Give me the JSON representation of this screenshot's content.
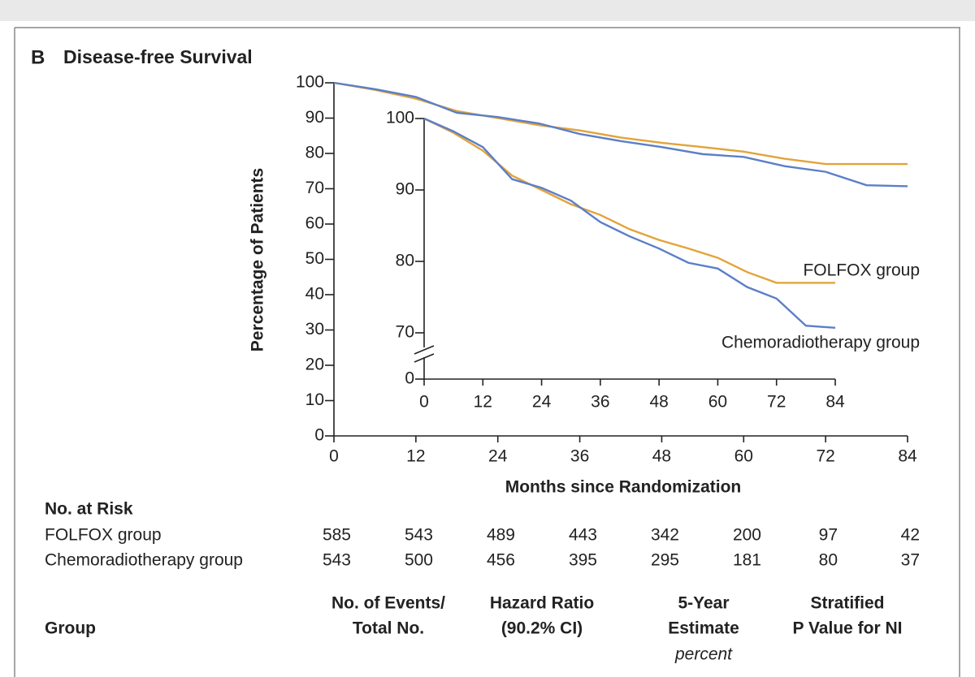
{
  "chart_data": {
    "type": "line",
    "panel": "B",
    "title": "Disease-free Survival",
    "x_label": "Months since Randomization",
    "y_label": "Percentage of Patients",
    "x": [
      0,
      6,
      12,
      18,
      24,
      30,
      36,
      42,
      48,
      54,
      60,
      66,
      72,
      78,
      84
    ],
    "series": [
      {
        "name": "FOLFOX group",
        "color": "#e3a33a",
        "values": [
          100,
          98,
          95.5,
          92,
          90,
          88,
          86.5,
          84.5,
          83,
          81.8,
          80.5,
          78.5,
          77,
          77,
          77
        ]
      },
      {
        "name": "Chemoradiotherapy group",
        "color": "#5b7fc8",
        "values": [
          100,
          98.2,
          96,
          91.5,
          90.3,
          88.5,
          85.5,
          83.5,
          81.8,
          79.8,
          79,
          76.4,
          74.8,
          71,
          70.7
        ]
      }
    ],
    "xlim": [
      0,
      84
    ],
    "xticks": [
      0,
      12,
      24,
      36,
      48,
      60,
      72,
      84
    ],
    "ylim": [
      0,
      100
    ],
    "yticks": [
      0,
      10,
      20,
      30,
      40,
      50,
      60,
      70,
      80,
      90,
      100
    ],
    "inset": {
      "xlim": [
        0,
        84
      ],
      "xticks": [
        0,
        12,
        24,
        36,
        48,
        60,
        72,
        84
      ],
      "ylim": [
        0,
        100
      ],
      "yticks": [
        0,
        70,
        80,
        90,
        100
      ],
      "axis_break": true
    },
    "risk_table": {
      "title": "No. at Risk",
      "rows": [
        {
          "name": "FOLFOX group",
          "values": [
            585,
            543,
            489,
            443,
            342,
            200,
            97,
            42
          ]
        },
        {
          "name": "Chemoradiotherapy group",
          "values": [
            543,
            500,
            456,
            395,
            295,
            181,
            80,
            37
          ]
        }
      ]
    }
  },
  "table": {
    "header": [
      {
        "lines": [
          "Group"
        ]
      },
      {
        "lines": [
          "No. of Events/",
          "Total No."
        ]
      },
      {
        "lines": [
          "Hazard Ratio",
          "(90.2% CI)"
        ]
      },
      {
        "lines": [
          "5-Year",
          "Estimate"
        ],
        "unit": "percent"
      },
      {
        "lines": [
          "Stratified",
          "P Value for NI"
        ]
      }
    ]
  }
}
